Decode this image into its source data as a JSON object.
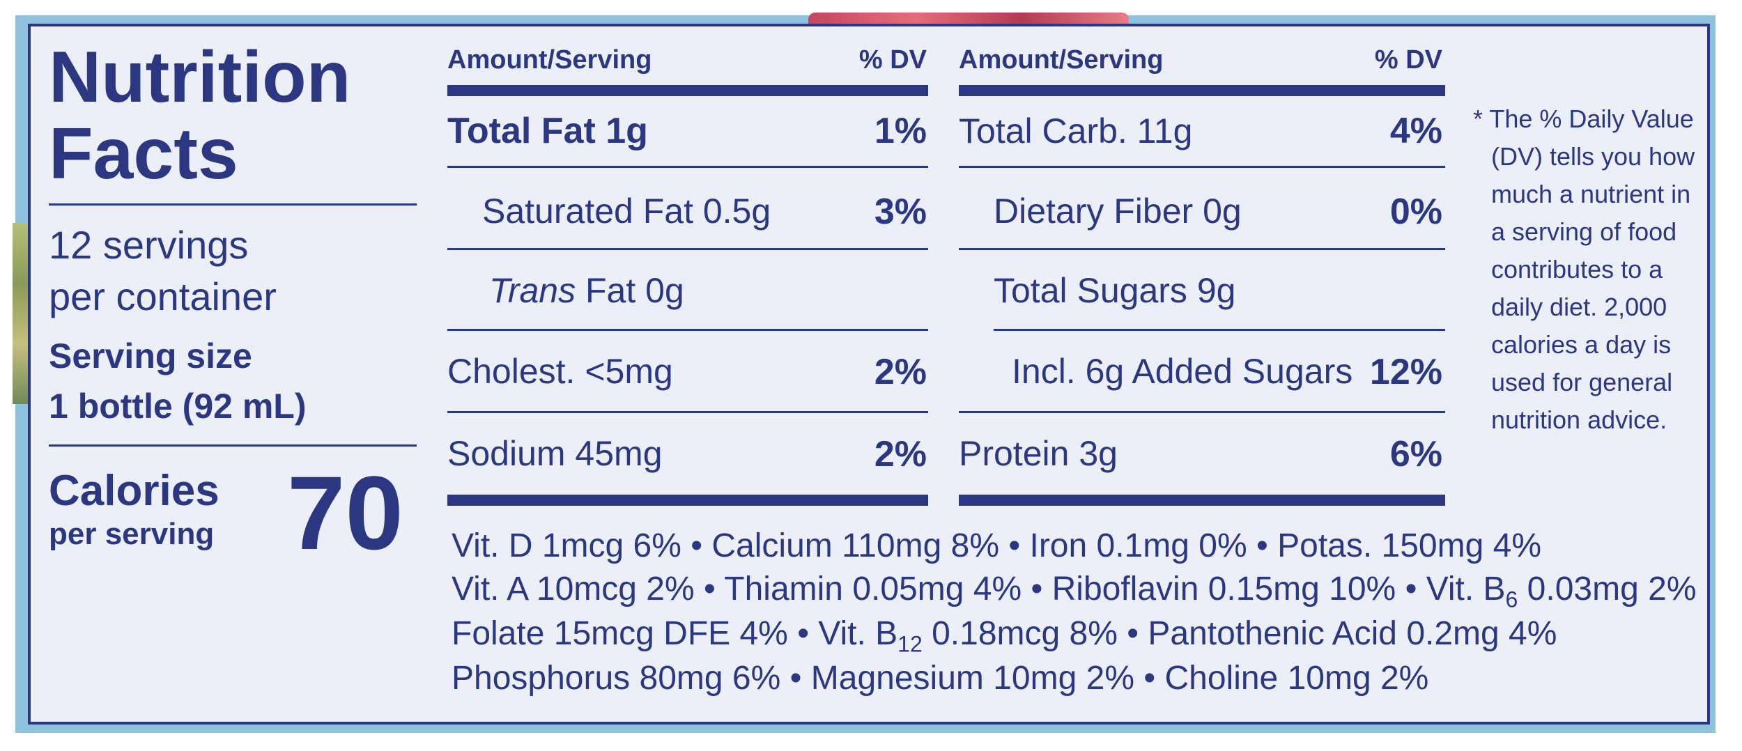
{
  "panel": {
    "title_line1": "Nutrition",
    "title_line2": "Facts",
    "servings_line1": "12 servings",
    "servings_line2": "per container",
    "serving_size_label": "Serving size",
    "serving_size_value": "1 bottle (92 mL)",
    "calories_label": "Calories",
    "calories_sub": "per serving",
    "calories_value": "70"
  },
  "left_table": {
    "header_amount": "Amount/Serving",
    "header_dv": "% DV",
    "rows": [
      {
        "name": "Total Fat 1g",
        "dv": "1%"
      },
      {
        "name": "Saturated Fat 0.5g",
        "dv": "3%"
      },
      {
        "name_italic": "Trans",
        "name_rest": " Fat 0g",
        "dv": ""
      },
      {
        "name": "Cholest. <5mg",
        "dv": "2%"
      },
      {
        "name": "Sodium 45mg",
        "dv": "2%"
      }
    ]
  },
  "right_table": {
    "header_amount": "Amount/Serving",
    "header_dv": "% DV",
    "rows": [
      {
        "name": "Total Carb. 11g",
        "dv": "4%"
      },
      {
        "name": "Dietary Fiber 0g",
        "dv": "0%"
      },
      {
        "name": "Total Sugars 9g",
        "dv": ""
      },
      {
        "name": "Incl. 6g Added Sugars",
        "dv": "12%"
      },
      {
        "name": "Protein 3g",
        "dv": "6%"
      }
    ]
  },
  "footnote": {
    "lines": [
      "* The % Daily Value",
      "(DV) tells you how",
      "much a nutrient in",
      "a serving of food",
      "contributes to a",
      "daily diet. 2,000",
      "calories a day is",
      "used for general",
      "nutrition advice."
    ]
  },
  "vitamins": {
    "line1": "Vit. D 1mcg 6% • Calcium 110mg 8% • Iron 0.1mg 0% • Potas. 150mg 4%",
    "line2_a": "Vit. A 10mcg 2% • Thiamin 0.05mg 4% • Riboflavin 0.15mg 10% • Vit. B",
    "line2_sub": "6",
    "line2_b": " 0.03mg 2%",
    "line3_a": "Folate 15mcg DFE 4% • Vit. B",
    "line3_sub": "12",
    "line3_b": " 0.18mcg 8% • Pantothenic Acid 0.2mg 4%",
    "line4": "Phosphorus 80mg 6% • Magnesium 10mg 2% • Choline 10mg 2%"
  },
  "colors": {
    "ink": "#2b3780",
    "panel_bg": "#eceff8",
    "package_blue": "#8fc2dd"
  }
}
